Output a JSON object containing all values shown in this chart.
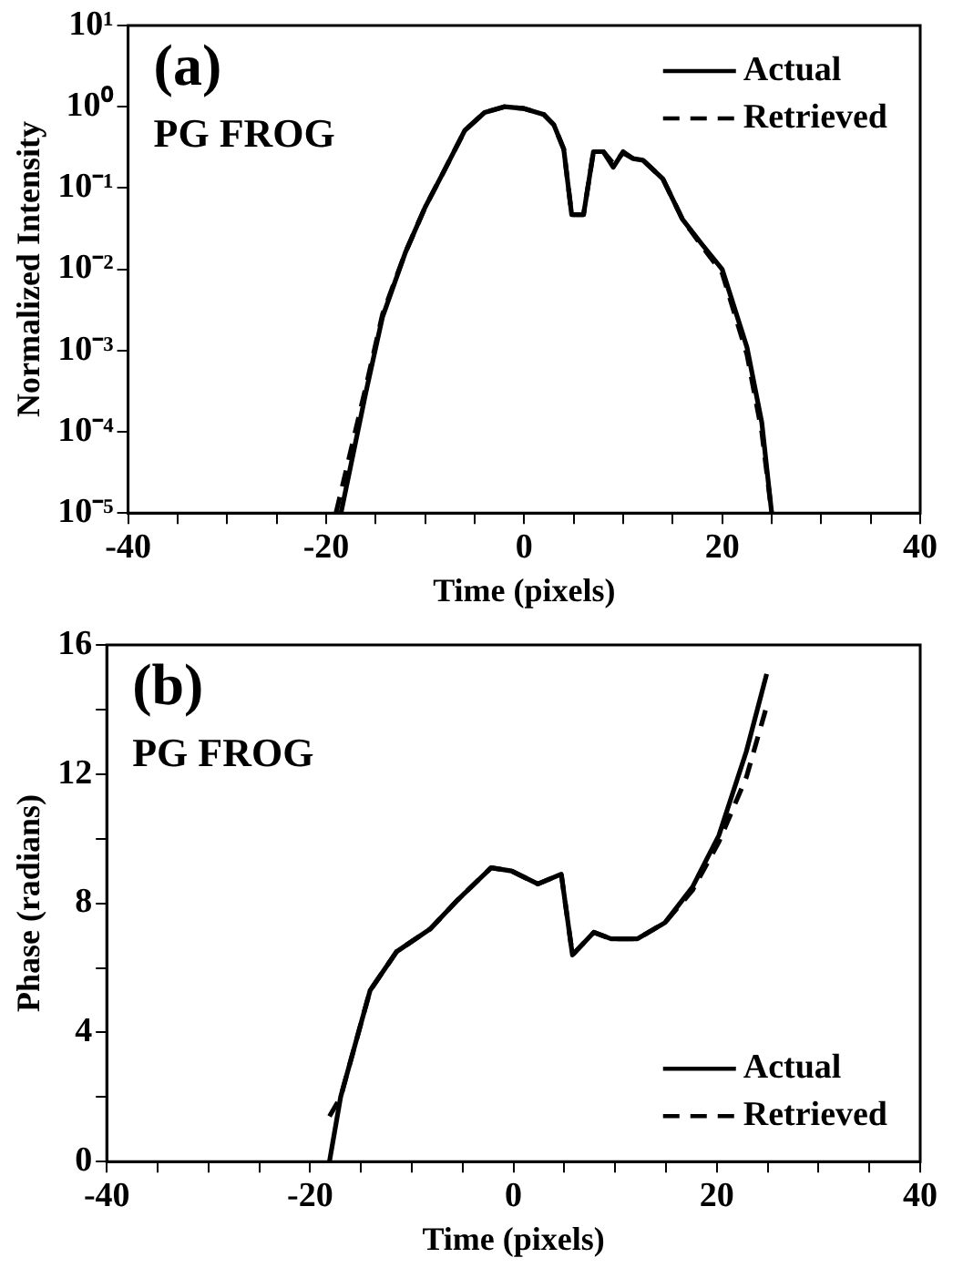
{
  "chart_data": [
    {
      "type": "line",
      "xlabel": "Time (pixels)",
      "ylabel": "Normalized Intensity",
      "log": "y",
      "grid": false,
      "legend": "top right",
      "marker": "none",
      "annotations": [
        "(a)",
        "PG FROG"
      ],
      "xlim": [
        -40,
        40
      ],
      "xticks": [
        -40,
        {
          "value": -35,
          "label": null
        },
        {
          "value": -30,
          "label": null
        },
        {
          "value": -25,
          "label": null
        },
        -20,
        {
          "value": -15,
          "label": null
        },
        {
          "value": -10,
          "label": null
        },
        {
          "value": -5,
          "label": null
        },
        0,
        {
          "value": 5,
          "label": null
        },
        {
          "value": 10,
          "label": null
        },
        {
          "value": 15,
          "label": null
        },
        20,
        {
          "value": 25,
          "label": null
        },
        {
          "value": 30,
          "label": null
        },
        {
          "value": 35,
          "label": null
        },
        40
      ],
      "ylim": [
        1e-05,
        10
      ],
      "yticks": [
        {
          "value": 1e-05,
          "label": "10⁻⁵"
        },
        {
          "value": 0.0001,
          "label": "10⁻⁴"
        },
        {
          "value": 0.001,
          "label": "10⁻³"
        },
        {
          "value": 0.01,
          "label": "10⁻²"
        },
        {
          "value": 0.1,
          "label": "10⁻¹"
        },
        {
          "value": 1,
          "label": "10⁰"
        },
        {
          "value": 10,
          "label": "10¹"
        }
      ],
      "series": [
        {
          "name": "Actual",
          "color": "#000000",
          "line_style": "solid",
          "x": [
            -18.5,
            -16,
            -14.3,
            -12,
            -10,
            -8,
            -6,
            -4,
            -2,
            0,
            2,
            3,
            4,
            4.8,
            6,
            7,
            8,
            9,
            10,
            11,
            12,
            14,
            16,
            18,
            20,
            22.5,
            24,
            25
          ],
          "values": [
            1e-05,
            0.0003,
            0.0026,
            0.016,
            0.058,
            0.17,
            0.51,
            0.85,
            1.0,
            0.95,
            0.8,
            0.6,
            0.3,
            0.047,
            0.047,
            0.28,
            0.28,
            0.18,
            0.28,
            0.23,
            0.22,
            0.13,
            0.041,
            0.02,
            0.01,
            0.0011,
            0.00013,
            1e-05
          ]
        },
        {
          "name": "Retrieved",
          "color": "#000000",
          "line_style": "dashed",
          "x": [
            -19,
            -16,
            -14.3,
            -12,
            -10,
            -8,
            -6,
            -4,
            -2,
            0,
            2,
            3,
            4,
            4.8,
            6,
            7,
            8,
            9,
            10,
            11,
            12,
            14,
            16,
            18,
            20,
            22.5,
            24,
            25
          ],
          "values": [
            1e-05,
            0.00035,
            0.0028,
            0.016,
            0.058,
            0.17,
            0.51,
            0.85,
            1.0,
            0.95,
            0.8,
            0.6,
            0.3,
            0.047,
            0.047,
            0.28,
            0.28,
            0.2,
            0.27,
            0.23,
            0.22,
            0.13,
            0.041,
            0.019,
            0.009,
            0.0009,
            0.0001,
            1e-05
          ]
        }
      ]
    },
    {
      "type": "line",
      "xlabel": "Time (pixels)",
      "ylabel": "Phase (radians)",
      "grid": false,
      "legend": "bottom right",
      "marker": "none",
      "annotations": [
        "(b)",
        "PG FROG"
      ],
      "xlim": [
        -40,
        40
      ],
      "xticks": [
        -40,
        {
          "value": -35,
          "label": null
        },
        {
          "value": -30,
          "label": null
        },
        {
          "value": -25,
          "label": null
        },
        -20,
        {
          "value": -15,
          "label": null
        },
        {
          "value": -10,
          "label": null
        },
        {
          "value": -5,
          "label": null
        },
        0,
        {
          "value": 5,
          "label": null
        },
        {
          "value": 10,
          "label": null
        },
        {
          "value": 15,
          "label": null
        },
        20,
        {
          "value": 25,
          "label": null
        },
        {
          "value": 30,
          "label": null
        },
        {
          "value": 35,
          "label": null
        },
        40
      ],
      "ylim": [
        0,
        16
      ],
      "yticks": [
        0,
        {
          "value": 2,
          "label": null
        },
        4,
        {
          "value": 6,
          "label": null
        },
        8,
        {
          "value": 10,
          "label": null
        },
        12,
        {
          "value": 14,
          "label": null
        },
        16
      ],
      "series": [
        {
          "name": "Actual",
          "color": "#000000",
          "line_style": "solid",
          "x": [
            -18.1,
            -17,
            -14.1,
            -11.5,
            -8.2,
            -5.5,
            -2.2,
            -0.2,
            2.4,
            4.7,
            5.8,
            7.9,
            9.6,
            12.2,
            14.9,
            17.6,
            20.2,
            22.9,
            24.9
          ],
          "values": [
            0,
            2.0,
            5.3,
            6.5,
            7.2,
            8.1,
            9.1,
            9.0,
            8.6,
            8.9,
            6.4,
            7.1,
            6.9,
            6.9,
            7.4,
            8.5,
            10.1,
            12.7,
            15.1
          ]
        },
        {
          "name": "Retrieved",
          "color": "#000000",
          "line_style": "dashed",
          "x": [
            -18.1,
            -17,
            -14.1,
            -11.5,
            -8.2,
            -5.5,
            -2.2,
            -0.2,
            2.4,
            4.7,
            5.8,
            7.9,
            9.6,
            12.2,
            14.9,
            17.6,
            20.2,
            22.9,
            24.9
          ],
          "values": [
            1.4,
            2.0,
            5.3,
            6.5,
            7.2,
            8.1,
            9.1,
            9.0,
            8.6,
            8.9,
            6.4,
            7.1,
            6.9,
            6.9,
            7.4,
            8.4,
            9.9,
            11.9,
            14.1
          ]
        }
      ]
    }
  ]
}
